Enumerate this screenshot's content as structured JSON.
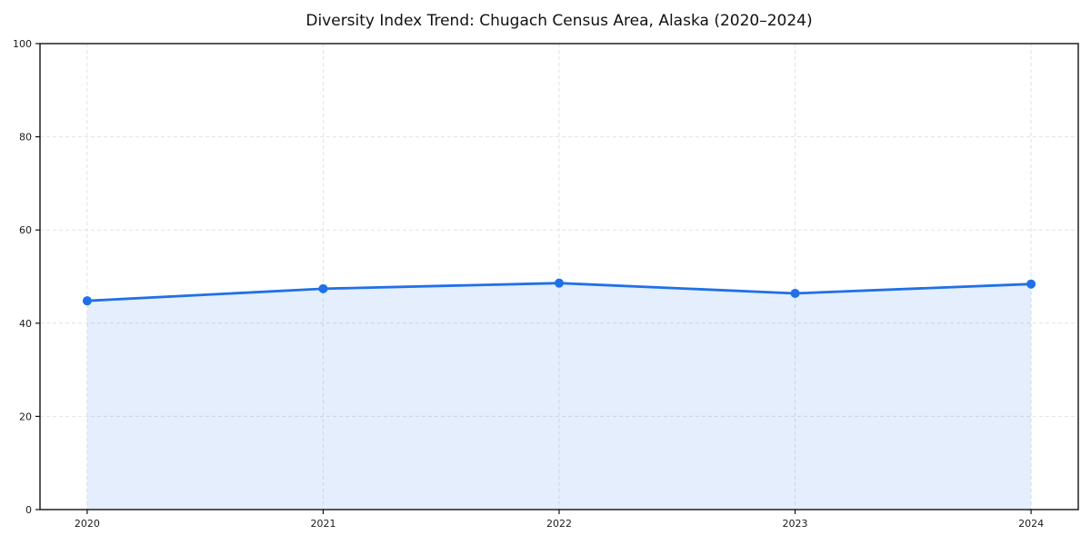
{
  "figure": {
    "title": "Diversity Index Trend: Chugach Census Area, Alaska (2020–2024)"
  },
  "chart_data": {
    "type": "area",
    "title": "Diversity Index Trend: Chugach Census Area, Alaska (2020–2024)",
    "x": [
      2020,
      2021,
      2022,
      2023,
      2024
    ],
    "series": [
      {
        "name": "Diversity Index",
        "values": [
          44.8,
          47.4,
          48.6,
          46.4,
          48.4
        ]
      }
    ],
    "xlabel": "",
    "ylabel": "",
    "xlim": [
      2019.8,
      2024.2
    ],
    "ylim": [
      0,
      100
    ],
    "xticks": [
      "2020",
      "2021",
      "2022",
      "2023",
      "2024"
    ],
    "xtick_values": [
      2020,
      2021,
      2022,
      2023,
      2024
    ],
    "yticks": [
      "0",
      "20",
      "40",
      "60",
      "80",
      "100"
    ],
    "ytick_values": [
      0,
      20,
      40,
      60,
      80,
      100
    ],
    "grid": true,
    "grid_style": "dashed",
    "legend": "none",
    "colors": {
      "line": "#2070e8",
      "marker": "#2070e8",
      "fill": "rgba(32,112,232,0.12)",
      "gridline": "#e2e2e2",
      "spine": "#111111",
      "tick_label": "#1a1a1a",
      "background": "#ffffff"
    }
  }
}
